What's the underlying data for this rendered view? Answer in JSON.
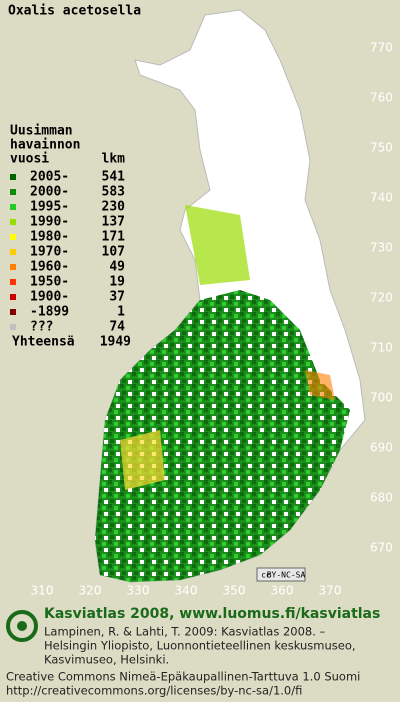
{
  "title": "Oxalis acetosella",
  "legend": {
    "heading": [
      "Uusimman",
      "havainnon",
      "vuosi"
    ],
    "count_heading": "lkm",
    "rows": [
      {
        "period": "2005-",
        "count": 541,
        "color": "#006400"
      },
      {
        "period": "2000-",
        "count": 583,
        "color": "#118811"
      },
      {
        "period": "1995-",
        "count": 230,
        "color": "#22cc22"
      },
      {
        "period": "1990-",
        "count": 137,
        "color": "#99dd00"
      },
      {
        "period": "1980-",
        "count": 171,
        "color": "#ffff00"
      },
      {
        "period": "1970-",
        "count": 107,
        "color": "#ffcc00"
      },
      {
        "period": "1960-",
        "count": 49,
        "color": "#ff8000"
      },
      {
        "period": "1950-",
        "count": 19,
        "color": "#ff3300"
      },
      {
        "period": "1900-",
        "count": 37,
        "color": "#cc0000"
      },
      {
        "period": "-1899",
        "count": 1,
        "color": "#800000"
      },
      {
        "period": "???",
        "count": 74,
        "color": "#c0c0c0"
      }
    ],
    "total_label": "Yhteensä",
    "total": 1949
  },
  "map": {
    "x_labels": [
      310,
      320,
      330,
      340,
      350,
      360,
      370
    ],
    "y_labels": [
      770,
      760,
      750,
      740,
      730,
      720,
      710,
      700,
      690,
      680,
      670
    ]
  },
  "cc_mark": "cc",
  "license_badge": "BY-NC-SA",
  "footer": {
    "headline": "Kasviatlas 2008, www.luomus.fi/kasviatlas",
    "citation": [
      "Lampinen, R. & Lahti, T. 2009: Kasviatlas 2008. –",
      "Helsingin Yliopisto, Luonnontieteellinen keskusmuseo,",
      "Kasvimuseo, Helsinki."
    ],
    "license": [
      "Creative Commons Nimeä-Epäkaupallinen-Tarttuva 1.0 Suomi",
      "http://creativecommons.org/licenses/by-nc-sa/1.0/fi"
    ]
  }
}
